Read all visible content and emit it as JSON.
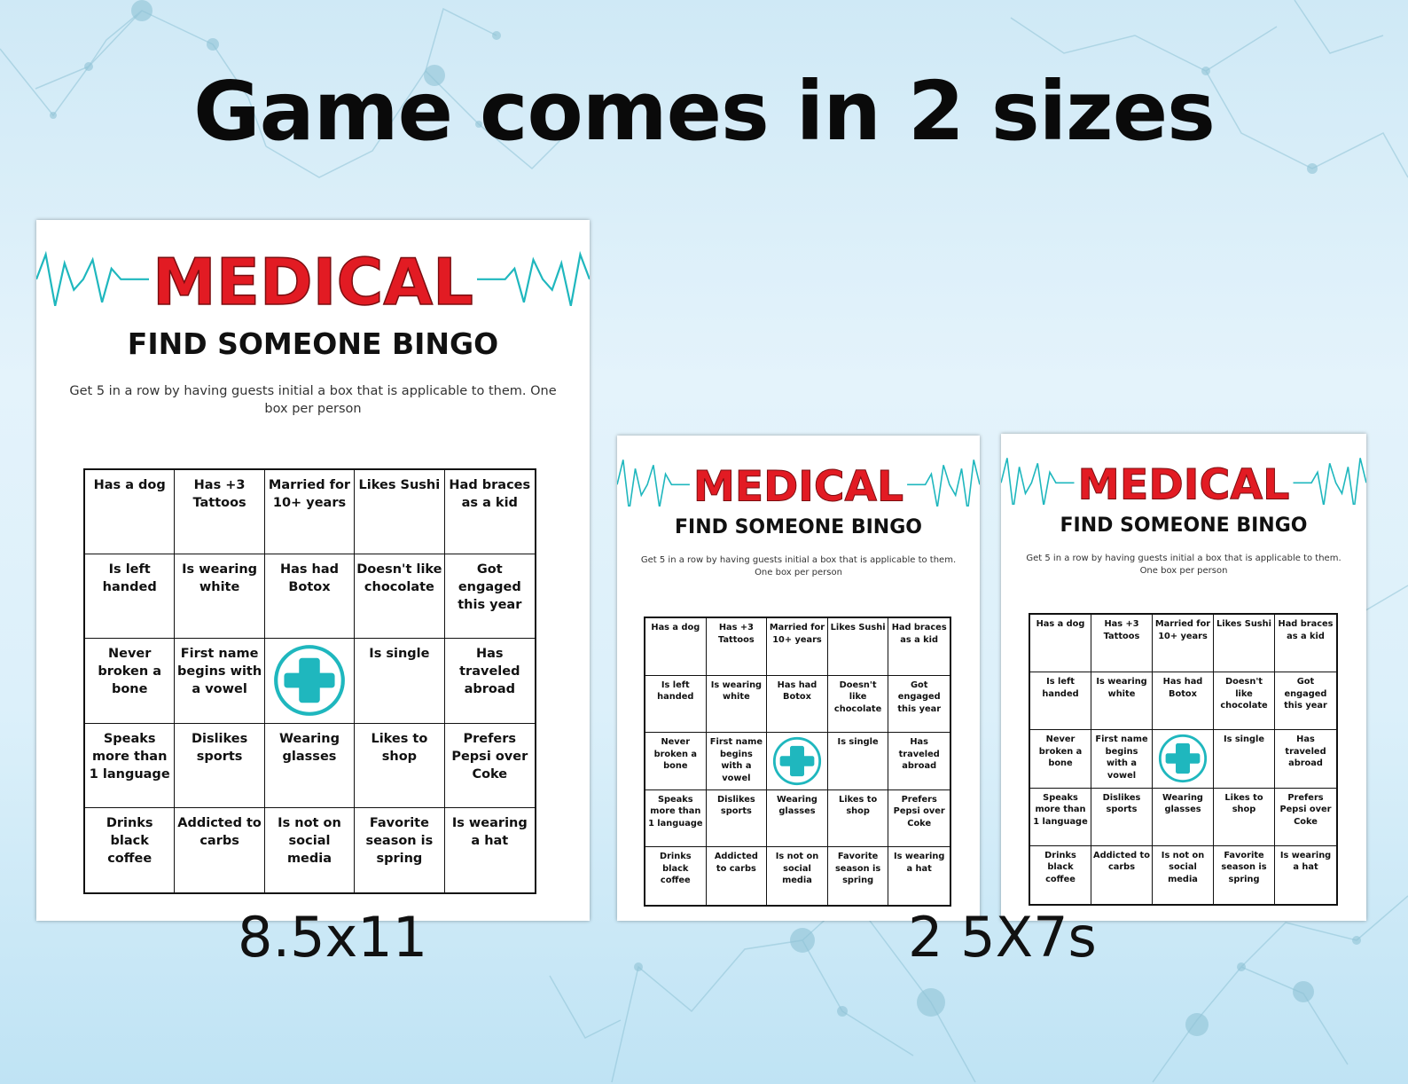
{
  "headline": "Game comes in 2 sizes",
  "labels": {
    "large": "8.5x11",
    "small": "2 5X7s"
  },
  "card": {
    "title": "MEDICAL",
    "subtitle": "FIND SOMEONE BINGO",
    "instructions": "Get 5 in a row by having guests initial a box that is applicable to them.  One box per person",
    "free_space_icon": "medical-cross-icon",
    "cells": [
      "Has a dog",
      "Has +3 Tattoos",
      "Married for 10+ years",
      "Likes Sushi",
      "Had braces as a kid",
      "Is left handed",
      "Is wearing white",
      "Has had Botox",
      "Doesn't like chocolate",
      "Got engaged this year",
      "Never broken a bone",
      "First name begins with a vowel",
      "",
      "Is single",
      "Has traveled abroad",
      "Speaks more than 1 language",
      "Dislikes sports",
      "Wearing glasses",
      "Likes to shop",
      "Prefers Pepsi over Coke",
      "Drinks black coffee",
      "Addicted to carbs",
      "Is not on social media",
      "Favorite season is spring",
      "Is wearing a hat"
    ]
  },
  "colors": {
    "title_red": "#e21b23",
    "heartbeat_teal": "#1fb7be",
    "background": "#d6eef9"
  }
}
